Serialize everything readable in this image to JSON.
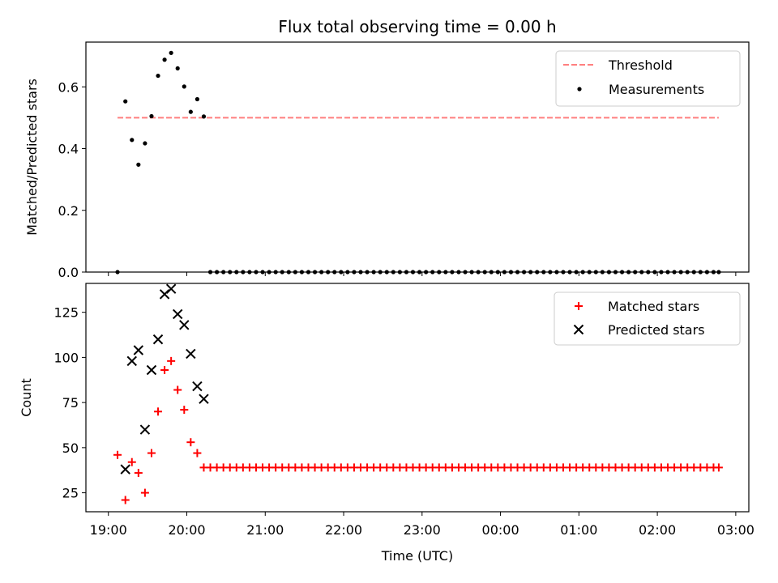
{
  "chart_data": [
    {
      "type": "scatter",
      "title": "Flux total observing time = 0.00 h",
      "xlabel": "",
      "ylabel": "Matched/Predicted stars",
      "yticks": [
        "0.0",
        "0.2",
        "0.4",
        "0.6"
      ],
      "ylim": [
        0.0,
        0.745
      ],
      "legend_position": "top-right",
      "grid": false,
      "threshold": {
        "name": "Threshold",
        "value": 0.5,
        "x_start": "19:07",
        "x_end": "02:47",
        "color": "#ff7f7f",
        "style": "dashed"
      },
      "series": [
        {
          "name": "Measurements",
          "marker": "dot",
          "color": "#000000",
          "x": [
            "19:07",
            "19:13",
            "19:18",
            "19:23",
            "19:28",
            "19:33",
            "19:38",
            "19:43",
            "19:48",
            "19:53",
            "19:58",
            "20:03",
            "20:08",
            "20:13",
            "20:18",
            "20:23",
            "20:28",
            "20:33",
            "20:38",
            "20:43",
            "20:48",
            "20:53",
            "20:58",
            "21:03",
            "21:08",
            "21:13",
            "21:18",
            "21:23",
            "21:28",
            "21:33",
            "21:38",
            "21:43",
            "21:48",
            "21:53",
            "21:58",
            "22:03",
            "22:08",
            "22:13",
            "22:18",
            "22:23",
            "22:28",
            "22:33",
            "22:38",
            "22:43",
            "22:48",
            "22:53",
            "22:58",
            "23:03",
            "23:08",
            "23:13",
            "23:18",
            "23:23",
            "23:28",
            "23:33",
            "23:38",
            "23:43",
            "23:48",
            "23:53",
            "23:58",
            "00:03",
            "00:08",
            "00:13",
            "00:18",
            "00:23",
            "00:28",
            "00:33",
            "00:38",
            "00:43",
            "00:48",
            "00:53",
            "00:58",
            "01:03",
            "01:08",
            "01:13",
            "01:18",
            "01:23",
            "01:28",
            "01:33",
            "01:38",
            "01:43",
            "01:48",
            "01:53",
            "01:58",
            "02:03",
            "02:08",
            "02:13",
            "02:18",
            "02:23",
            "02:28",
            "02:33",
            "02:38",
            "02:43",
            "02:47"
          ],
          "y": [
            0.0,
            0.553,
            0.428,
            0.348,
            0.417,
            0.505,
            0.636,
            0.688,
            0.71,
            0.66,
            0.601,
            0.519,
            0.56,
            0.504,
            0,
            0,
            0,
            0,
            0,
            0,
            0,
            0,
            0,
            0,
            0,
            0,
            0,
            0,
            0,
            0,
            0,
            0,
            0,
            0,
            0,
            0,
            0,
            0,
            0,
            0,
            0,
            0,
            0,
            0,
            0,
            0,
            0,
            0,
            0,
            0,
            0,
            0,
            0,
            0,
            0,
            0,
            0,
            0,
            0,
            0,
            0,
            0,
            0,
            0,
            0,
            0,
            0,
            0,
            0,
            0,
            0,
            0,
            0,
            0,
            0,
            0,
            0,
            0,
            0,
            0,
            0,
            0,
            0,
            0,
            0,
            0,
            0,
            0,
            0,
            0,
            0,
            0,
            0
          ]
        }
      ]
    },
    {
      "type": "scatter",
      "title": "",
      "xlabel": "Time (UTC)",
      "ylabel": "Count",
      "xticks": [
        "19:00",
        "20:00",
        "21:00",
        "22:00",
        "23:00",
        "00:00",
        "01:00",
        "02:00",
        "03:00"
      ],
      "yticks": [
        "25",
        "50",
        "75",
        "100",
        "125"
      ],
      "ylim": [
        14.5,
        141
      ],
      "legend_position": "top-right",
      "grid": false,
      "series": [
        {
          "name": "Matched stars",
          "marker": "plus",
          "color": "#ff0000",
          "x": [
            "19:07",
            "19:13",
            "19:18",
            "19:23",
            "19:28",
            "19:33",
            "19:38",
            "19:43",
            "19:48",
            "19:53",
            "19:58",
            "20:03",
            "20:08",
            "20:13",
            "20:18",
            "20:23",
            "20:28",
            "20:33",
            "20:38",
            "20:43",
            "20:48",
            "20:53",
            "20:58",
            "21:03",
            "21:08",
            "21:13",
            "21:18",
            "21:23",
            "21:28",
            "21:33",
            "21:38",
            "21:43",
            "21:48",
            "21:53",
            "21:58",
            "22:03",
            "22:08",
            "22:13",
            "22:18",
            "22:23",
            "22:28",
            "22:33",
            "22:38",
            "22:43",
            "22:48",
            "22:53",
            "22:58",
            "23:03",
            "23:08",
            "23:13",
            "23:18",
            "23:23",
            "23:28",
            "23:33",
            "23:38",
            "23:43",
            "23:48",
            "23:53",
            "23:58",
            "00:03",
            "00:08",
            "00:13",
            "00:18",
            "00:23",
            "00:28",
            "00:33",
            "00:38",
            "00:43",
            "00:48",
            "00:53",
            "00:58",
            "01:03",
            "01:08",
            "01:13",
            "01:18",
            "01:23",
            "01:28",
            "01:33",
            "01:38",
            "01:43",
            "01:48",
            "01:53",
            "01:58",
            "02:03",
            "02:08",
            "02:13",
            "02:18",
            "02:23",
            "02:28",
            "02:33",
            "02:38",
            "02:43",
            "02:47"
          ],
          "y": [
            46,
            21,
            42,
            36,
            25,
            47,
            70,
            93,
            98,
            82,
            71,
            53,
            47,
            39,
            39,
            39,
            39,
            39,
            39,
            39,
            39,
            39,
            39,
            39,
            39,
            39,
            39,
            39,
            39,
            39,
            39,
            39,
            39,
            39,
            39,
            39,
            39,
            39,
            39,
            39,
            39,
            39,
            39,
            39,
            39,
            39,
            39,
            39,
            39,
            39,
            39,
            39,
            39,
            39,
            39,
            39,
            39,
            39,
            39,
            39,
            39,
            39,
            39,
            39,
            39,
            39,
            39,
            39,
            39,
            39,
            39,
            39,
            39,
            39,
            39,
            39,
            39,
            39,
            39,
            39,
            39,
            39,
            39,
            39,
            39,
            39,
            39,
            39,
            39,
            39,
            39,
            39,
            39
          ]
        },
        {
          "name": "Predicted stars",
          "marker": "x",
          "color": "#000000",
          "x": [
            "19:13",
            "19:18",
            "19:23",
            "19:28",
            "19:33",
            "19:38",
            "19:43",
            "19:48",
            "19:53",
            "19:58",
            "20:03",
            "20:08",
            "20:13"
          ],
          "y": [
            38,
            98,
            104,
            60,
            93,
            110,
            135,
            138,
            124,
            118,
            102,
            84,
            77
          ]
        }
      ]
    }
  ]
}
